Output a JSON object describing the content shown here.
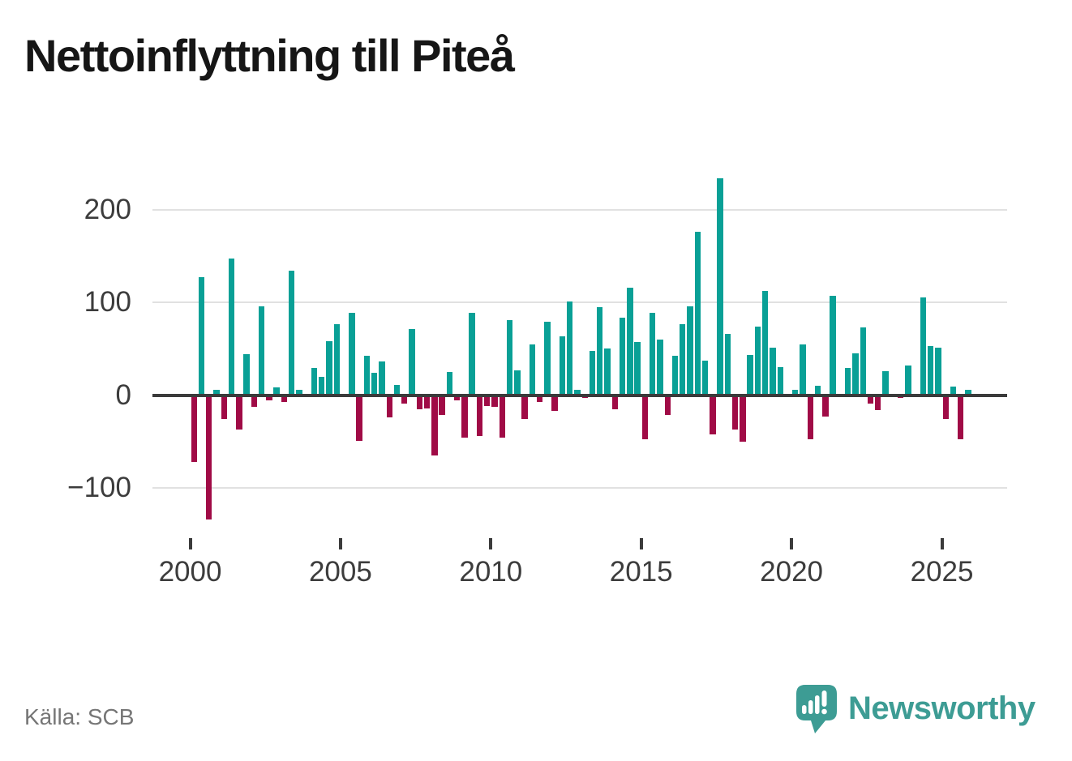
{
  "title": "Nettoinflyttning till Piteå",
  "source": "Källa: SCB",
  "brand": "Newsworthy",
  "colors": {
    "positive": "#09a096",
    "negative": "#a00b46",
    "axis": "#3b3b3b",
    "grid": "#e1e1e1",
    "tick_label": "#3c3c3c",
    "source_text": "#767676",
    "brand_teal": "#3d9c94"
  },
  "chart_data": {
    "type": "bar",
    "title": "Nettoinflyttning till Piteå",
    "xlabel": "",
    "ylabel": "",
    "grid": true,
    "legend": "none",
    "ylim": [
      -150,
      250
    ],
    "yticks": [
      200,
      100,
      0,
      -100
    ],
    "y_tick_labels": [
      "200",
      "100",
      "0",
      "−100"
    ],
    "xticks": [
      2000,
      2005,
      2010,
      2015,
      2020,
      2025
    ],
    "x_tick_labels": [
      "2000",
      "2005",
      "2010",
      "2015",
      "2020",
      "2025"
    ],
    "x": [
      "2000Q1",
      "2000Q2",
      "2000Q3",
      "2000Q4",
      "2001Q1",
      "2001Q2",
      "2001Q3",
      "2001Q4",
      "2002Q1",
      "2002Q2",
      "2002Q3",
      "2002Q4",
      "2003Q1",
      "2003Q2",
      "2003Q3",
      "2003Q4",
      "2004Q1",
      "2004Q2",
      "2004Q3",
      "2004Q4",
      "2005Q1",
      "2005Q2",
      "2005Q3",
      "2005Q4",
      "2006Q1",
      "2006Q2",
      "2006Q3",
      "2006Q4",
      "2007Q1",
      "2007Q2",
      "2007Q3",
      "2007Q4",
      "2008Q1",
      "2008Q2",
      "2008Q3",
      "2008Q4",
      "2009Q1",
      "2009Q2",
      "2009Q3",
      "2009Q4",
      "2010Q1",
      "2010Q2",
      "2010Q3",
      "2010Q4",
      "2011Q1",
      "2011Q2",
      "2011Q3",
      "2011Q4",
      "2012Q1",
      "2012Q2",
      "2012Q3",
      "2012Q4",
      "2013Q1",
      "2013Q2",
      "2013Q3",
      "2013Q4",
      "2014Q1",
      "2014Q2",
      "2014Q3",
      "2014Q4",
      "2015Q1",
      "2015Q2",
      "2015Q3",
      "2015Q4",
      "2016Q1",
      "2016Q2",
      "2016Q3",
      "2016Q4",
      "2017Q1",
      "2017Q2",
      "2017Q3",
      "2017Q4",
      "2018Q1",
      "2018Q2",
      "2018Q3",
      "2018Q4",
      "2019Q1",
      "2019Q2",
      "2019Q3",
      "2019Q4",
      "2020Q1",
      "2020Q2",
      "2020Q3",
      "2020Q4",
      "2021Q1",
      "2021Q2",
      "2021Q3",
      "2021Q4",
      "2022Q1",
      "2022Q2",
      "2022Q3",
      "2022Q4",
      "2023Q1",
      "2023Q2",
      "2023Q3",
      "2023Q4",
      "2024Q1",
      "2024Q2",
      "2024Q3",
      "2024Q4",
      "2025Q1",
      "2025Q2",
      "2025Q3",
      "2025Q4"
    ],
    "values": [
      -72,
      127,
      -134,
      6,
      -26,
      147,
      -37,
      44,
      -13,
      96,
      -6,
      8,
      -7,
      134,
      6,
      0,
      29,
      20,
      58,
      76,
      0,
      89,
      -49,
      42,
      24,
      36,
      -24,
      11,
      -9,
      71,
      -15,
      -14,
      -65,
      -21,
      25,
      -6,
      -46,
      89,
      -44,
      -12,
      -13,
      -46,
      81,
      27,
      -26,
      55,
      -7,
      79,
      -17,
      63,
      101,
      6,
      -3,
      48,
      95,
      50,
      -15,
      83,
      116,
      57,
      -48,
      89,
      60,
      -21,
      42,
      76,
      96,
      176,
      37,
      -42,
      234,
      66,
      -37,
      -50,
      43,
      74,
      112,
      51,
      30,
      0,
      6,
      55,
      -48,
      10,
      -23,
      107,
      0,
      29,
      45,
      73,
      -9,
      -16,
      26,
      0,
      -3,
      32,
      0,
      105,
      53,
      51,
      -26,
      9,
      -48,
      6
    ]
  }
}
